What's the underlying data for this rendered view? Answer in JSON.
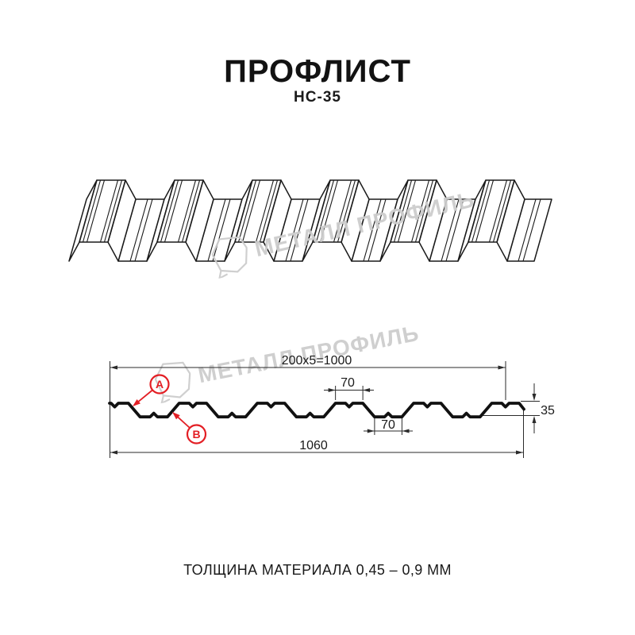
{
  "header": {
    "title": "ПРОФЛИСТ",
    "subtitle": "НС-35"
  },
  "watermark": {
    "brand": "МЕТАЛЛ ПРОФИЛЬ",
    "color": "#cdcdcd"
  },
  "colors": {
    "accent_red": "#e31e24",
    "line_black": "#1a1a1a"
  },
  "diagram": {
    "dim_top": "200x5=1000",
    "dim_rib_top": "70",
    "dim_rib_bottom": "70",
    "dim_height": "35",
    "dim_total": "1060",
    "label_a": "А",
    "label_b": "В"
  },
  "footer": {
    "caption": "ТОЛЩИНА МАТЕРИАЛА 0,45 – 0,9 ММ"
  }
}
